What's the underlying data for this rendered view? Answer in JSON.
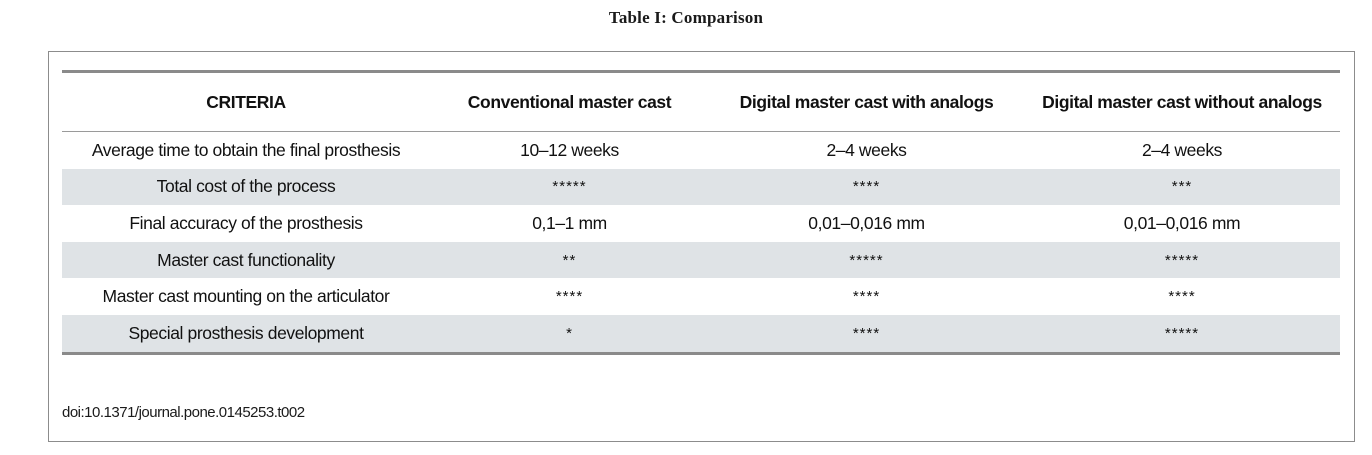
{
  "caption": "Table I: Comparison",
  "table": {
    "headers": [
      "CRITERIA",
      "Conventional master cast",
      "Digital master cast with analogs",
      "Digital master cast without analogs"
    ],
    "rows": [
      [
        "Average time to obtain the final prosthesis",
        "10–12 weeks",
        "2–4 weeks",
        "2–4 weeks"
      ],
      [
        "Total cost of the process",
        "*****",
        "****",
        "***"
      ],
      [
        "Final accuracy of the prosthesis",
        "0,1–1 mm",
        "0,01–0,016 mm",
        "0,01–0,016 mm"
      ],
      [
        "Master cast functionality",
        "**",
        "*****",
        "*****"
      ],
      [
        "Master cast mounting on the articulator",
        "****",
        "****",
        "****"
      ],
      [
        "Special prosthesis development",
        "*",
        "****",
        "*****"
      ]
    ]
  },
  "doi": "doi:10.1371/journal.pone.0145253.t002",
  "colors": {
    "stripe": "#dfe3e6",
    "rule": "#8a8a8a"
  }
}
